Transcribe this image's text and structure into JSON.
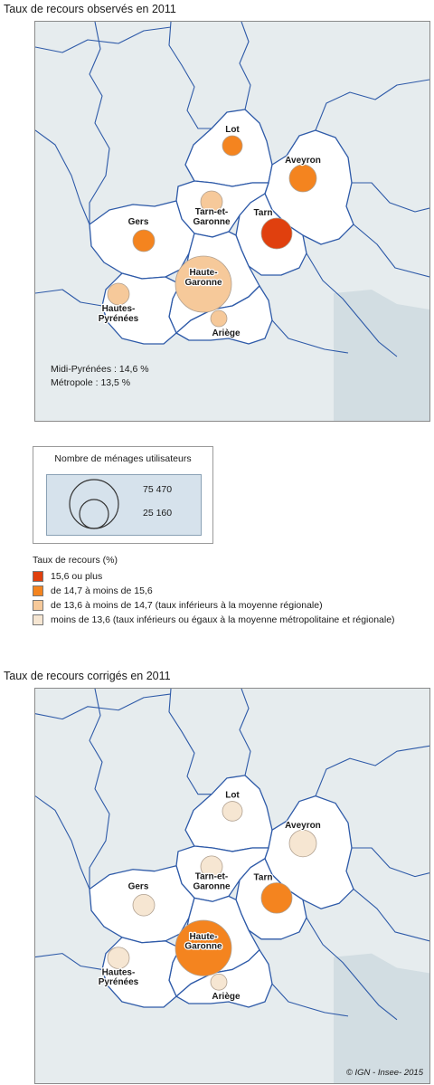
{
  "map1": {
    "title": "Taux de recours observés en 2011",
    "region_stats": [
      "Midi-Pyrénées : 14,6 %",
      "Métropole : 13,5 %"
    ],
    "departments": [
      {
        "id": "lot",
        "label": "Lot",
        "class": 2
      },
      {
        "id": "aveyron",
        "label": "Aveyron",
        "class": 2
      },
      {
        "id": "tarn-et-garonne",
        "label": "Tarn-et-Garonne",
        "class": 3
      },
      {
        "id": "tarn",
        "label": "Tarn",
        "class": 1
      },
      {
        "id": "gers",
        "label": "Gers",
        "class": 2
      },
      {
        "id": "haute-garonne",
        "label": "Haute-Garonne",
        "class": 3
      },
      {
        "id": "hautes-pyrenees",
        "label": "Hautes-Pyrénées",
        "class": 3
      },
      {
        "id": "ariege",
        "label": "Ariège",
        "class": 3
      }
    ]
  },
  "map2": {
    "title": "Taux de recours corrigés en 2011",
    "departments": [
      {
        "id": "lot",
        "label": "Lot",
        "class": 4
      },
      {
        "id": "aveyron",
        "label": "Aveyron",
        "class": 4
      },
      {
        "id": "tarn-et-garonne",
        "label": "Tarn-et-Garonne",
        "class": 4
      },
      {
        "id": "tarn",
        "label": "Tarn",
        "class": 2
      },
      {
        "id": "gers",
        "label": "Gers",
        "class": 4
      },
      {
        "id": "haute-garonne",
        "label": "Haute-Garonne",
        "class": 2
      },
      {
        "id": "hautes-pyrenees",
        "label": "Hautes-Pyrénées",
        "class": 4
      },
      {
        "id": "ariege",
        "label": "Ariège",
        "class": 4
      }
    ],
    "credit": "© IGN - Insee- 2015"
  },
  "size_legend": {
    "title": "Nombre de ménages utilisateurs",
    "values": [
      "75 470",
      "25 160"
    ]
  },
  "class_legend": {
    "title": "Taux de recours (%)",
    "classes": [
      {
        "label": "15,6 ou plus",
        "color": "#e0400e"
      },
      {
        "label": "de 14,7 à moins de 15,6",
        "color": "#f4841f"
      },
      {
        "label": "de 13,6 à moins de 14,7 (taux inférieurs à la moyenne régionale)",
        "color": "#f6c99a"
      },
      {
        "label": "moins de 13,6 (taux inférieurs ou égaux à la moyenne métropolitaine et régionale)",
        "color": "#f6e6d2"
      }
    ]
  }
}
